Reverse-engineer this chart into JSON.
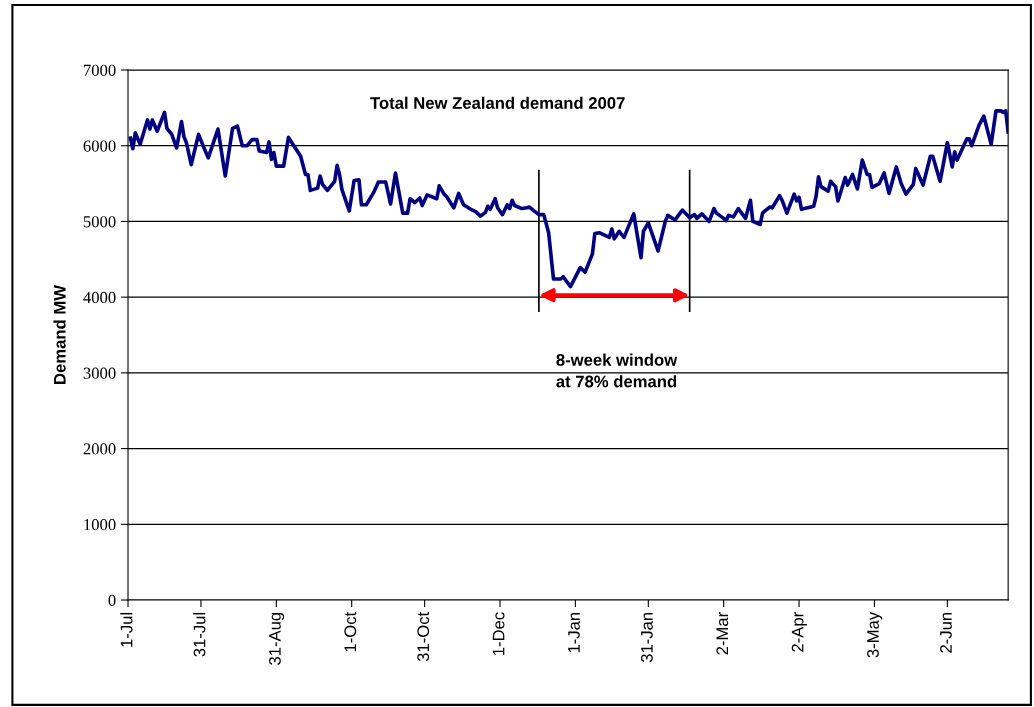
{
  "chart_data": {
    "type": "line",
    "title": "Total New Zealand demand 2007",
    "ylabel": "Demand MW",
    "annotations": [
      "8-week window\nat 78% demand"
    ],
    "ref_lines": [
      {
        "axis": "x",
        "value": "2007-12-17",
        "color": "#000000"
      },
      {
        "axis": "x",
        "value": "2008-02-17",
        "color": "#000000"
      }
    ],
    "xlim": [
      "2007-07-01",
      "2008-06-27"
    ],
    "ylim": [
      0,
      7000
    ],
    "xticks": [
      {
        "value": "2007-07-01",
        "label": "1-Jul"
      },
      {
        "value": "2007-07-31",
        "label": "31-Jul"
      },
      {
        "value": "2007-08-31",
        "label": "31-Aug"
      },
      {
        "value": "2007-10-01",
        "label": "1-Oct"
      },
      {
        "value": "2007-10-31",
        "label": "31-Oct"
      },
      {
        "value": "2007-12-01",
        "label": "1-Dec"
      },
      {
        "value": "2008-01-01",
        "label": "1-Jan"
      },
      {
        "value": "2008-01-31",
        "label": "31-Jan"
      },
      {
        "value": "2008-03-02",
        "label": "2-Mar"
      },
      {
        "value": "2008-04-02",
        "label": "2-Apr"
      },
      {
        "value": "2008-05-03",
        "label": "3-May"
      },
      {
        "value": "2008-06-02",
        "label": "2-Jun"
      }
    ],
    "yticks": [
      0,
      1000,
      2000,
      3000,
      4000,
      5000,
      6000,
      7000
    ],
    "grid": "y",
    "marker": "none",
    "line_style": "solid",
    "series": [
      {
        "color": "#000080",
        "x": [
          "2007-07-02",
          "2007-07-03",
          "2007-07-04",
          "2007-07-06",
          "2007-07-09",
          "2007-07-10",
          "2007-07-11",
          "2007-07-13",
          "2007-07-16",
          "2007-07-17",
          "2007-07-19",
          "2007-07-21",
          "2007-07-23",
          "2007-07-24",
          "2007-07-25",
          "2007-07-27",
          "2007-07-30",
          "2007-08-01",
          "2007-08-03",
          "2007-08-07",
          "2007-08-10",
          "2007-08-13",
          "2007-08-15",
          "2007-08-17",
          "2007-08-19",
          "2007-08-21",
          "2007-08-23",
          "2007-08-24",
          "2007-08-27",
          "2007-08-28",
          "2007-08-29",
          "2007-08-30",
          "2007-08-31",
          "2007-09-03",
          "2007-09-05",
          "2007-09-07",
          "2007-09-10",
          "2007-09-12",
          "2007-09-13",
          "2007-09-14",
          "2007-09-17",
          "2007-09-18",
          "2007-09-19",
          "2007-09-21",
          "2007-09-24",
          "2007-09-25",
          "2007-09-26",
          "2007-09-27",
          "2007-09-30",
          "2007-10-02",
          "2007-10-04",
          "2007-10-05",
          "2007-10-07",
          "2007-10-10",
          "2007-10-12",
          "2007-10-15",
          "2007-10-17",
          "2007-10-19",
          "2007-10-22",
          "2007-10-24",
          "2007-10-25",
          "2007-10-27",
          "2007-10-29",
          "2007-10-30",
          "2007-11-01",
          "2007-11-05",
          "2007-11-06",
          "2007-11-08",
          "2007-11-09",
          "2007-11-12",
          "2007-11-14",
          "2007-11-16",
          "2007-11-19",
          "2007-11-21",
          "2007-11-23",
          "2007-11-25",
          "2007-11-26",
          "2007-11-27",
          "2007-11-29",
          "2007-11-30",
          "2007-12-02",
          "2007-12-04",
          "2007-12-05",
          "2007-12-06",
          "2007-12-07",
          "2007-12-10",
          "2007-12-12",
          "2007-12-13",
          "2007-12-15",
          "2007-12-17",
          "2007-12-19",
          "2007-12-21",
          "2007-12-23",
          "2007-12-26",
          "2007-12-27",
          "2007-12-30",
          "2008-01-03",
          "2008-01-05",
          "2008-01-08",
          "2008-01-09",
          "2008-01-11",
          "2008-01-15",
          "2008-01-16",
          "2008-01-17",
          "2008-01-19",
          "2008-01-21",
          "2008-01-25",
          "2008-01-28",
          "2008-01-29",
          "2008-01-31",
          "2008-02-04",
          "2008-02-07",
          "2008-02-08",
          "2008-02-11",
          "2008-02-14",
          "2008-02-17",
          "2008-02-19",
          "2008-02-20",
          "2008-02-22",
          "2008-02-25",
          "2008-02-27",
          "2008-02-28",
          "2008-03-02",
          "2008-03-03",
          "2008-03-04",
          "2008-03-06",
          "2008-03-08",
          "2008-03-11",
          "2008-03-13",
          "2008-03-14",
          "2008-03-17",
          "2008-03-18",
          "2008-03-19",
          "2008-03-21",
          "2008-03-22",
          "2008-03-25",
          "2008-03-26",
          "2008-03-28",
          "2008-03-31",
          "2008-04-01",
          "2008-04-02",
          "2008-04-03",
          "2008-04-08",
          "2008-04-09",
          "2008-04-10",
          "2008-04-11",
          "2008-04-14",
          "2008-04-15",
          "2008-04-17",
          "2008-04-18",
          "2008-04-21",
          "2008-04-22",
          "2008-04-24",
          "2008-04-26",
          "2008-04-28",
          "2008-04-30",
          "2008-05-01",
          "2008-05-02",
          "2008-05-05",
          "2008-05-07",
          "2008-05-09",
          "2008-05-12",
          "2008-05-14",
          "2008-05-16",
          "2008-05-19",
          "2008-05-20",
          "2008-05-23",
          "2008-05-26",
          "2008-05-27",
          "2008-05-30",
          "2008-06-02",
          "2008-06-04",
          "2008-06-05",
          "2008-06-06",
          "2008-06-10",
          "2008-06-11",
          "2008-06-12",
          "2008-06-15",
          "2008-06-17",
          "2008-06-20",
          "2008-06-22",
          "2008-06-24",
          "2008-06-25",
          "2008-06-26",
          "2008-06-27"
        ],
        "values": [
          6100,
          5960,
          6170,
          6020,
          6340,
          6220,
          6340,
          6190,
          6440,
          6230,
          6150,
          5970,
          6320,
          6120,
          6040,
          5750,
          6150,
          5990,
          5840,
          6220,
          5600,
          6230,
          6260,
          6000,
          6000,
          6080,
          6080,
          5930,
          5910,
          6050,
          5820,
          5910,
          5730,
          5730,
          6110,
          6010,
          5860,
          5620,
          5620,
          5410,
          5440,
          5600,
          5490,
          5410,
          5530,
          5740,
          5620,
          5420,
          5140,
          5540,
          5550,
          5220,
          5220,
          5380,
          5520,
          5520,
          5230,
          5640,
          5110,
          5110,
          5300,
          5250,
          5310,
          5210,
          5350,
          5300,
          5470,
          5360,
          5330,
          5180,
          5370,
          5220,
          5160,
          5130,
          5070,
          5120,
          5200,
          5160,
          5300,
          5180,
          5090,
          5220,
          5170,
          5280,
          5210,
          5170,
          5180,
          5190,
          5140,
          5090,
          5090,
          4850,
          4240,
          4240,
          4270,
          4140,
          4390,
          4330,
          4570,
          4840,
          4850,
          4790,
          4900,
          4770,
          4870,
          4790,
          5100,
          4520,
          4870,
          4980,
          4610,
          5000,
          5080,
          5020,
          5150,
          5050,
          5090,
          5040,
          5100,
          5000,
          5170,
          5110,
          5040,
          5010,
          5080,
          5060,
          5170,
          5040,
          5280,
          5000,
          4960,
          5110,
          5140,
          5190,
          5180,
          5340,
          5280,
          5110,
          5360,
          5270,
          5320,
          5160,
          5200,
          5330,
          5590,
          5460,
          5400,
          5530,
          5460,
          5270,
          5580,
          5480,
          5620,
          5430,
          5810,
          5620,
          5620,
          5450,
          5500,
          5640,
          5370,
          5720,
          5500,
          5360,
          5490,
          5700,
          5480,
          5860,
          5860,
          5530,
          6040,
          5720,
          5920,
          5810,
          6090,
          6090,
          6000,
          6270,
          6390,
          6020,
          6460,
          6460,
          6440,
          6460,
          6180
        ]
      }
    ]
  }
}
